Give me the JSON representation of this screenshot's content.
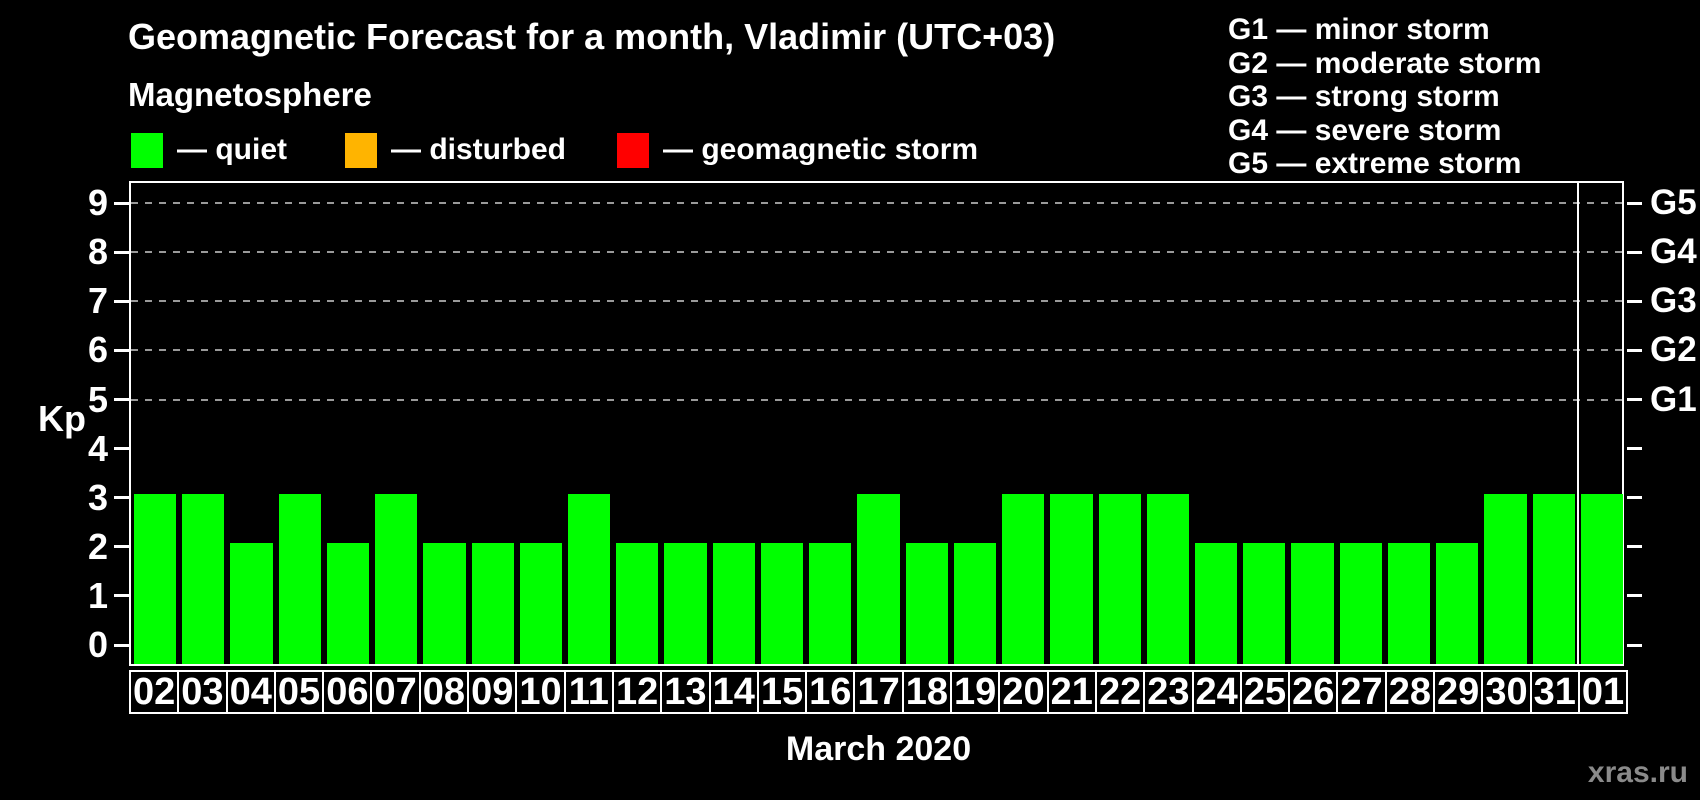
{
  "header": {
    "title": "Geomagnetic Forecast for a month, Vladimir (UTC+03)"
  },
  "legend": {
    "title": "Magnetosphere",
    "items": [
      {
        "label": "— quiet",
        "status": "quiet",
        "color": "#00ff00"
      },
      {
        "label": "— disturbed",
        "status": "disturbed",
        "color": "#ffb400"
      },
      {
        "label": "— geomagnetic storm",
        "status": "geomagnetic storm",
        "color": "#ff0000"
      }
    ]
  },
  "g_legend": [
    "G1 — minor storm",
    "G2 — moderate storm",
    "G3 — strong storm",
    "G4 — severe storm",
    "G5 — extreme storm"
  ],
  "axes": {
    "y_label": "Kp",
    "y_ticks": [
      0,
      1,
      2,
      3,
      4,
      5,
      6,
      7,
      8,
      9
    ],
    "grid_levels": [
      5,
      6,
      7,
      8,
      9
    ],
    "right_scale": [
      {
        "kp": 5,
        "label": "G1"
      },
      {
        "kp": 6,
        "label": "G2"
      },
      {
        "kp": 7,
        "label": "G3"
      },
      {
        "kp": 8,
        "label": "G4"
      },
      {
        "kp": 9,
        "label": "G5"
      }
    ],
    "x_title": "March 2020"
  },
  "watermark": "xras.ru",
  "colors": {
    "background": "#000000",
    "text": "#ffffff",
    "grid": "#9a9a9a",
    "quiet": "#00ff00",
    "disturbed": "#ffb400",
    "storm": "#ff0000",
    "watermark_text": "#8a8a8a",
    "month_separator": "#ffffff"
  },
  "chart_data": {
    "type": "bar",
    "title": "Geomagnetic Forecast for a month, Vladimir (UTC+03)",
    "xlabel": "March 2020",
    "ylabel": "Kp",
    "ylim": [
      0,
      9.4
    ],
    "grid": "horizontal dashed lines at Kp 5,6,7,8,9 (G1–G5 levels)",
    "legend_position": "top",
    "categories": [
      "02",
      "03",
      "04",
      "05",
      "06",
      "07",
      "08",
      "09",
      "10",
      "11",
      "12",
      "13",
      "14",
      "15",
      "16",
      "17",
      "18",
      "19",
      "20",
      "21",
      "22",
      "23",
      "24",
      "25",
      "26",
      "27",
      "28",
      "29",
      "30",
      "31",
      "01"
    ],
    "values": [
      3,
      3,
      2,
      3,
      2,
      3,
      2,
      2,
      2,
      3,
      2,
      2,
      2,
      2,
      2,
      3,
      2,
      2,
      3,
      3,
      3,
      3,
      2,
      2,
      2,
      2,
      2,
      2,
      3,
      3,
      3
    ],
    "status_all": "quiet",
    "bar_color": "#00ff00",
    "month_boundary_index": 30
  }
}
